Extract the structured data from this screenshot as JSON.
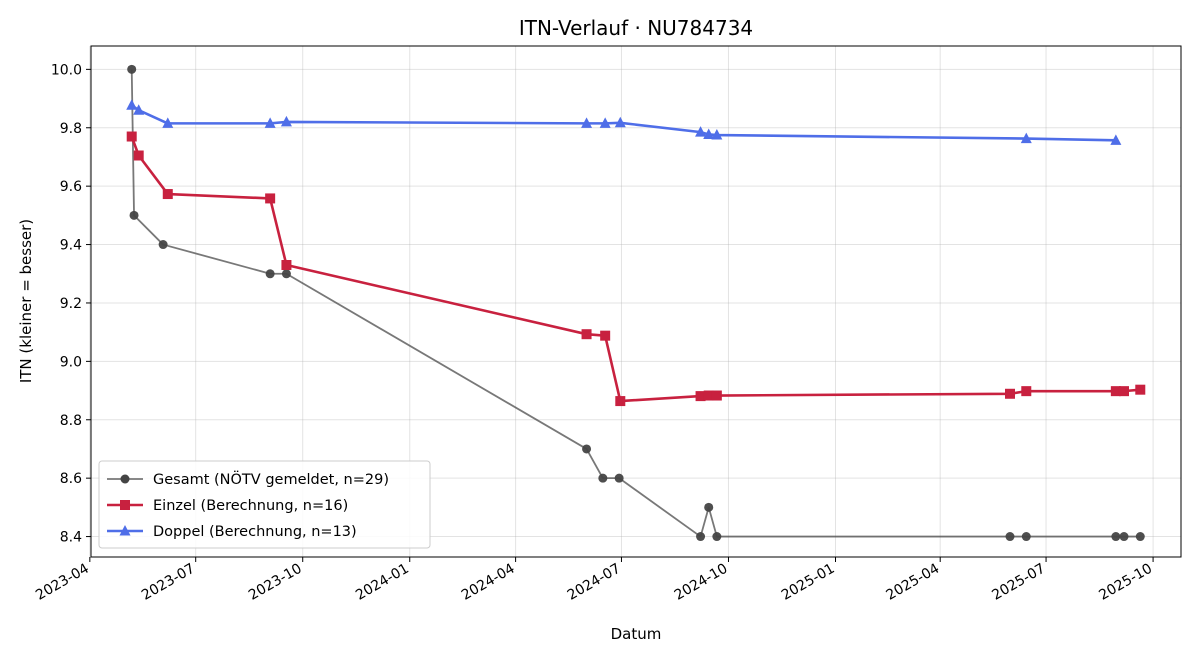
{
  "chart_data": {
    "type": "line",
    "title": "ITN-Verlauf · NU784734",
    "xlabel": "Datum",
    "ylabel": "ITN  (kleiner = besser)",
    "xlim": [
      "2023-04-02",
      "2025-10-25"
    ],
    "ylim": [
      8.33,
      10.08
    ],
    "x_ticks": [
      "2023-04",
      "2023-07",
      "2023-10",
      "2024-01",
      "2024-04",
      "2024-07",
      "2024-10",
      "2025-01",
      "2025-04",
      "2025-07",
      "2025-10"
    ],
    "y_ticks": [
      "8.4",
      "8.6",
      "8.8",
      "9.0",
      "9.2",
      "9.4",
      "9.6",
      "9.8",
      "10.0"
    ],
    "grid": true,
    "legend_position": "lower-left",
    "series": [
      {
        "name": "Gesamt (NÖTV gemeldet, n=29)",
        "color": "#444444",
        "marker": "circle",
        "points": [
          {
            "x": "2023-05-07",
            "y": 10.0
          },
          {
            "x": "2023-05-09",
            "y": 9.5
          },
          {
            "x": "2023-06-03",
            "y": 9.4
          },
          {
            "x": "2023-09-03",
            "y": 9.3
          },
          {
            "x": "2023-09-17",
            "y": 9.3
          },
          {
            "x": "2024-06-01",
            "y": 8.7
          },
          {
            "x": "2024-06-15",
            "y": 8.6
          },
          {
            "x": "2024-06-29",
            "y": 8.6
          },
          {
            "x": "2024-09-07",
            "y": 8.4
          },
          {
            "x": "2024-09-14",
            "y": 8.5
          },
          {
            "x": "2024-09-21",
            "y": 8.4
          },
          {
            "x": "2025-05-31",
            "y": 8.4
          },
          {
            "x": "2025-06-14",
            "y": 8.4
          },
          {
            "x": "2025-08-30",
            "y": 8.4
          },
          {
            "x": "2025-09-06",
            "y": 8.4
          },
          {
            "x": "2025-09-20",
            "y": 8.4
          }
        ]
      },
      {
        "name": "Einzel (Berechnung, n=16)",
        "color": "#c8213f",
        "marker": "square",
        "points": [
          {
            "x": "2023-05-07",
            "y": 9.77
          },
          {
            "x": "2023-05-13",
            "y": 9.705
          },
          {
            "x": "2023-06-07",
            "y": 9.573
          },
          {
            "x": "2023-09-03",
            "y": 9.558
          },
          {
            "x": "2023-09-17",
            "y": 9.33
          },
          {
            "x": "2024-06-01",
            "y": 9.093
          },
          {
            "x": "2024-06-17",
            "y": 9.088
          },
          {
            "x": "2024-06-30",
            "y": 8.864
          },
          {
            "x": "2024-09-07",
            "y": 8.881
          },
          {
            "x": "2024-09-14",
            "y": 8.883
          },
          {
            "x": "2024-09-21",
            "y": 8.883
          },
          {
            "x": "2025-05-31",
            "y": 8.889
          },
          {
            "x": "2025-06-14",
            "y": 8.898
          },
          {
            "x": "2025-08-30",
            "y": 8.898
          },
          {
            "x": "2025-09-06",
            "y": 8.898
          },
          {
            "x": "2025-09-20",
            "y": 8.903
          }
        ]
      },
      {
        "name": "Doppel (Berechnung, n=13)",
        "color": "#4f6ee8",
        "marker": "triangle",
        "points": [
          {
            "x": "2023-05-07",
            "y": 9.877
          },
          {
            "x": "2023-05-13",
            "y": 9.86
          },
          {
            "x": "2023-06-07",
            "y": 9.815
          },
          {
            "x": "2023-09-03",
            "y": 9.815
          },
          {
            "x": "2023-09-17",
            "y": 9.82
          },
          {
            "x": "2024-06-01",
            "y": 9.815
          },
          {
            "x": "2024-06-17",
            "y": 9.815
          },
          {
            "x": "2024-06-30",
            "y": 9.817
          },
          {
            "x": "2024-09-07",
            "y": 9.785
          },
          {
            "x": "2024-09-14",
            "y": 9.777
          },
          {
            "x": "2024-09-21",
            "y": 9.775
          },
          {
            "x": "2025-06-14",
            "y": 9.763
          },
          {
            "x": "2025-08-30",
            "y": 9.757
          }
        ]
      }
    ]
  }
}
